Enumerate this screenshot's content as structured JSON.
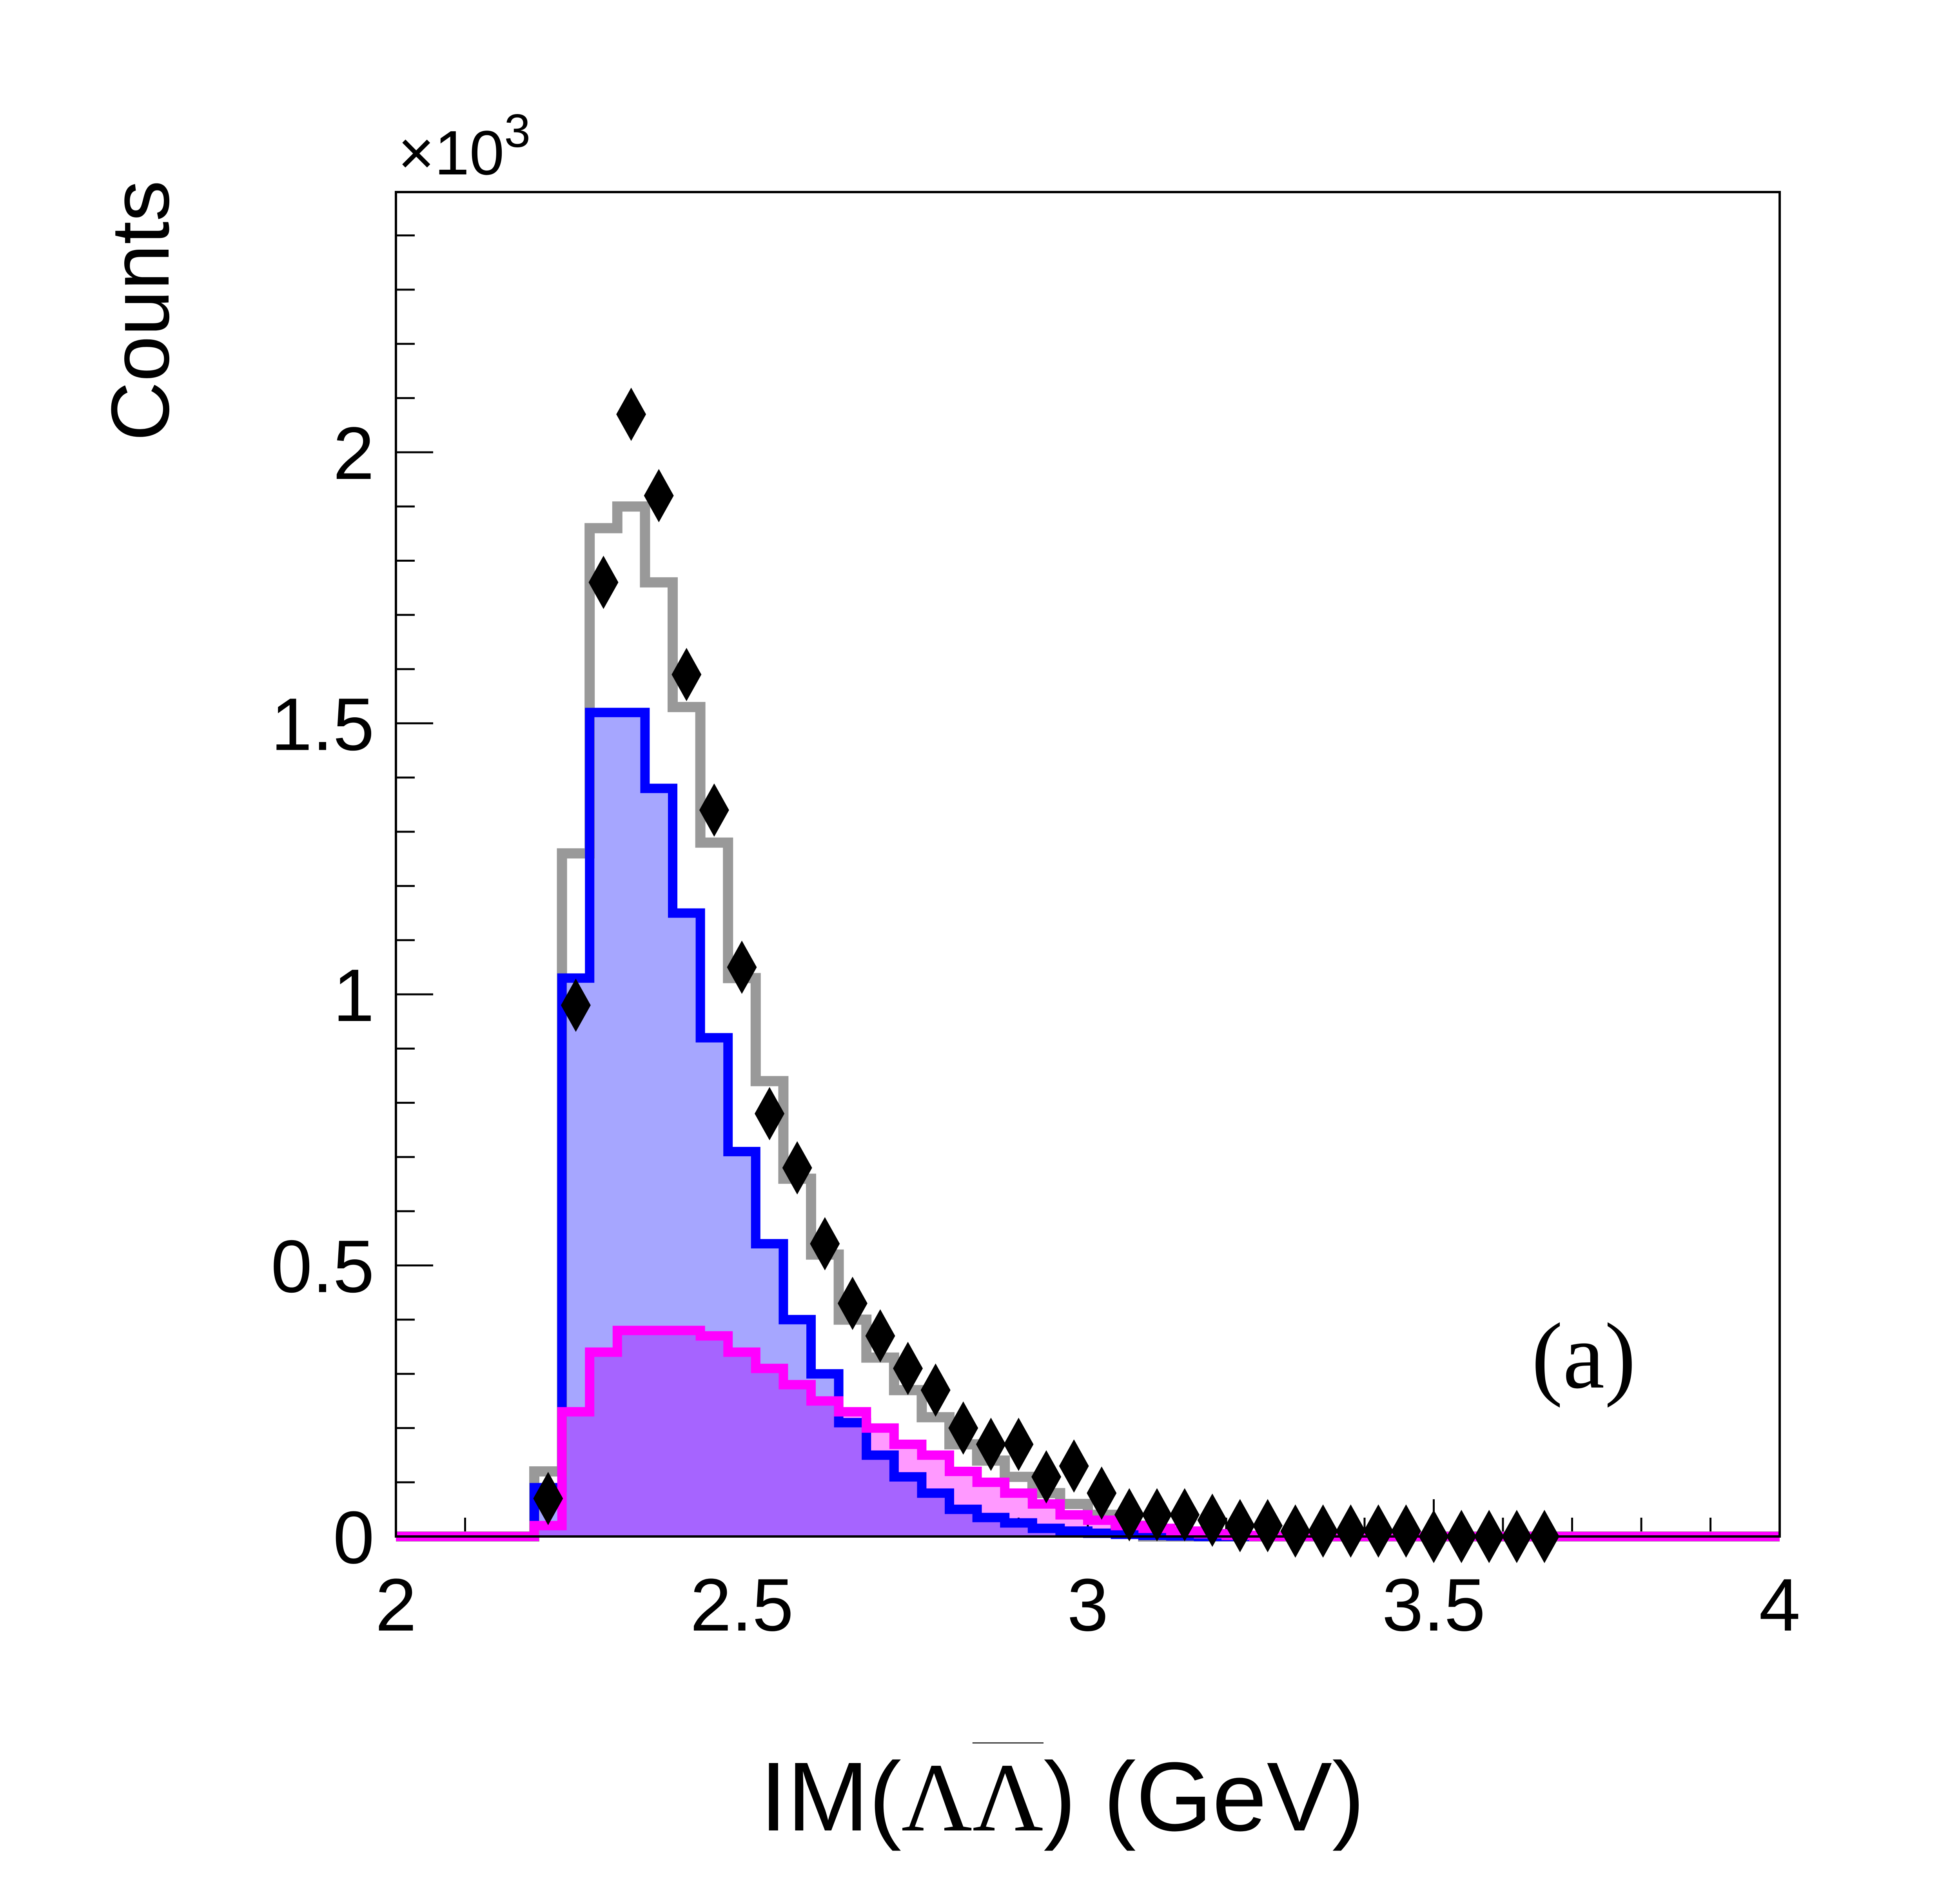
{
  "chart_data": {
    "type": "histogram",
    "title": "",
    "xlabel": "IM(ΛΛ̄) (GeV)",
    "xlabel_parts": {
      "prefix": "IM(",
      "lambda": "Λ",
      "lambda_bar": "Λ",
      "suffix": ") (GeV)"
    },
    "ylabel": "Counts",
    "y_multiplier": {
      "base": "×10",
      "exponent": "3"
    },
    "annotation": "(a)",
    "xlim": [
      2,
      4
    ],
    "ylim": [
      0,
      2.48
    ],
    "x_ticks": [
      2,
      2.5,
      3,
      3.5,
      4
    ],
    "x_tick_labels": [
      "2",
      "2.5",
      "3",
      "3.5",
      "4"
    ],
    "y_ticks": [
      0,
      0.5,
      1,
      1.5,
      2
    ],
    "y_tick_labels": [
      "0",
      "0.5",
      "1",
      "1.5",
      "2"
    ],
    "bin_width": 0.04,
    "colors": {
      "total": "#999999",
      "blue": "#0000ff",
      "blue_fill": "#a6a6ff",
      "magenta": "#ff00ff",
      "magenta_fill": "#ff99ff",
      "overlap_fill": "#c266ff",
      "data": "#000000"
    },
    "series": [
      {
        "name": "total",
        "style": "step",
        "x_edges": [
          2.2,
          2.24,
          2.28,
          2.32,
          2.36,
          2.4,
          2.44,
          2.48,
          2.52,
          2.56,
          2.6,
          2.64,
          2.68,
          2.72,
          2.76,
          2.8,
          2.84,
          2.88,
          2.92,
          2.96,
          3.0,
          3.04,
          3.08
        ],
        "values": [
          0.12,
          1.26,
          1.86,
          1.9,
          1.76,
          1.53,
          1.28,
          1.03,
          0.84,
          0.66,
          0.52,
          0.4,
          0.33,
          0.27,
          0.22,
          0.17,
          0.14,
          0.11,
          0.08,
          0.06,
          0.04,
          0.02
        ]
      },
      {
        "name": "blue",
        "style": "filled-step",
        "x_edges": [
          2.2,
          2.24,
          2.28,
          2.32,
          2.36,
          2.4,
          2.44,
          2.48,
          2.52,
          2.56,
          2.6,
          2.64,
          2.68,
          2.72,
          2.76,
          2.8,
          2.84,
          2.88,
          2.92,
          2.96,
          3.0,
          3.04,
          3.08,
          3.12,
          3.16,
          3.2
        ],
        "values": [
          0.09,
          1.03,
          1.52,
          1.52,
          1.38,
          1.15,
          0.92,
          0.71,
          0.54,
          0.4,
          0.3,
          0.21,
          0.15,
          0.11,
          0.08,
          0.05,
          0.035,
          0.025,
          0.015,
          0.01,
          0.006,
          0.004,
          0.002,
          0.001,
          0.0
        ]
      },
      {
        "name": "magenta",
        "style": "filled-step",
        "x_edges": [
          2.2,
          2.24,
          2.28,
          2.32,
          2.36,
          2.4,
          2.44,
          2.48,
          2.52,
          2.56,
          2.6,
          2.64,
          2.68,
          2.72,
          2.76,
          2.8,
          2.84,
          2.88,
          2.92,
          2.96,
          3.0,
          3.04,
          3.08,
          3.12,
          3.16,
          3.2,
          3.24,
          3.28
        ],
        "values": [
          0.02,
          0.23,
          0.34,
          0.38,
          0.38,
          0.38,
          0.37,
          0.34,
          0.31,
          0.28,
          0.25,
          0.23,
          0.2,
          0.17,
          0.15,
          0.12,
          0.1,
          0.08,
          0.06,
          0.04,
          0.03,
          0.02,
          0.015,
          0.01,
          0.005,
          0.002,
          0.0
        ]
      },
      {
        "name": "data",
        "style": "diamond-markers",
        "x": [
          2.22,
          2.26,
          2.3,
          2.34,
          2.38,
          2.42,
          2.46,
          2.5,
          2.54,
          2.58,
          2.62,
          2.66,
          2.7,
          2.74,
          2.78,
          2.82,
          2.86,
          2.9,
          2.94,
          2.98,
          3.02,
          3.06,
          3.1,
          3.14,
          3.18,
          3.22,
          3.26,
          3.3,
          3.34,
          3.38,
          3.42,
          3.46,
          3.5,
          3.54,
          3.58,
          3.62,
          3.66
        ],
        "values": [
          0.07,
          0.98,
          1.76,
          2.07,
          1.92,
          1.59,
          1.34,
          1.05,
          0.78,
          0.68,
          0.54,
          0.43,
          0.37,
          0.31,
          0.27,
          0.2,
          0.17,
          0.17,
          0.11,
          0.13,
          0.08,
          0.04,
          0.04,
          0.04,
          0.03,
          0.02,
          0.02,
          0.01,
          0.01,
          0.01,
          0.01,
          0.01,
          0.0,
          0.0,
          0.0,
          0.0,
          0.0
        ]
      }
    ]
  }
}
